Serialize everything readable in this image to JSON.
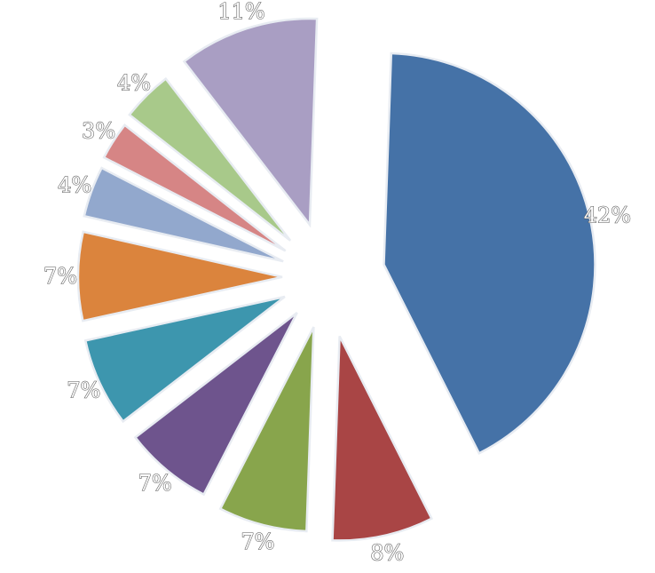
{
  "chart_data": {
    "type": "pie",
    "title": "",
    "exploded": true,
    "legend": "none",
    "slices": [
      {
        "label": "42%",
        "value": 42,
        "color": "#4572a7"
      },
      {
        "label": "8%",
        "value": 8,
        "color": "#a94545"
      },
      {
        "label": "7%",
        "value": 7,
        "color": "#88a54c"
      },
      {
        "label": "7%",
        "value": 7,
        "color": "#6e548d"
      },
      {
        "label": "7%",
        "value": 7,
        "color": "#3d96ae"
      },
      {
        "label": "7%",
        "value": 7,
        "color": "#db843d"
      },
      {
        "label": "4%",
        "value": 4,
        "color": "#92a8cd"
      },
      {
        "label": "3%",
        "value": 3,
        "color": "#d68585"
      },
      {
        "label": "4%",
        "value": 4,
        "color": "#a8c98a"
      },
      {
        "label": "11%",
        "value": 11,
        "color": "#a99ec3"
      }
    ]
  }
}
